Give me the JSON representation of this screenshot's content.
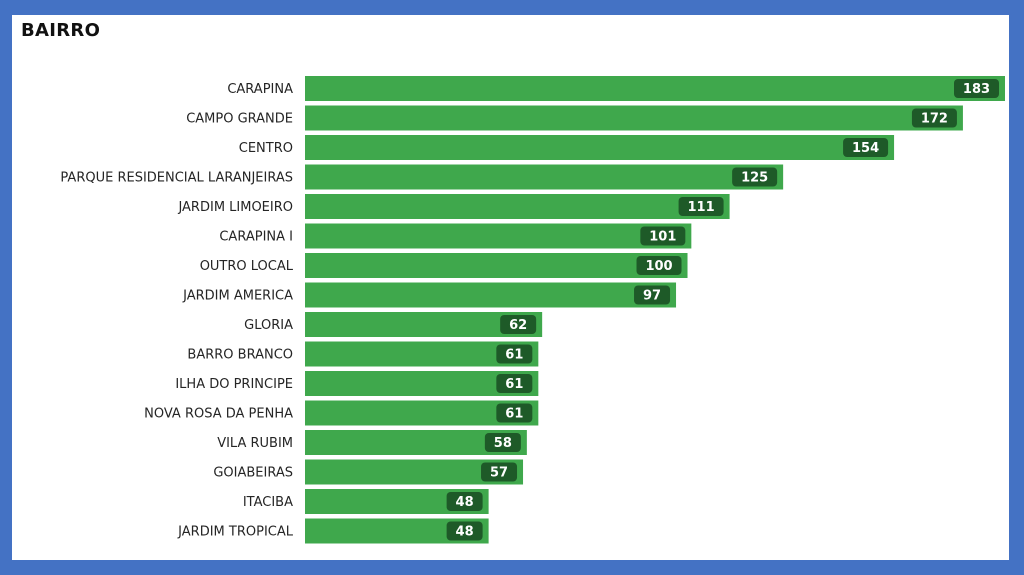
{
  "chart_data": {
    "type": "bar",
    "orientation": "horizontal",
    "title": "BAIRRO",
    "categories": [
      "CARAPINA",
      "CAMPO GRANDE",
      "CENTRO",
      "PARQUE RESIDENCIAL LARANJEIRAS",
      "JARDIM LIMOEIRO",
      "CARAPINA I",
      "OUTRO LOCAL",
      "JARDIM AMERICA",
      "GLORIA",
      "BARRO BRANCO",
      "ILHA DO PRINCIPE",
      "NOVA ROSA DA PENHA",
      "VILA RUBIM",
      "GOIABEIRAS",
      "ITACIBA",
      "JARDIM TROPICAL"
    ],
    "values": [
      183,
      172,
      154,
      125,
      111,
      101,
      100,
      97,
      62,
      61,
      61,
      61,
      58,
      57,
      48,
      48
    ],
    "xlim": [
      0,
      183
    ],
    "grid": false,
    "legend": "none",
    "colors": {
      "bar": "#3fa84c",
      "value_badge": "#1e5a28",
      "frame": "#4472c4"
    }
  }
}
